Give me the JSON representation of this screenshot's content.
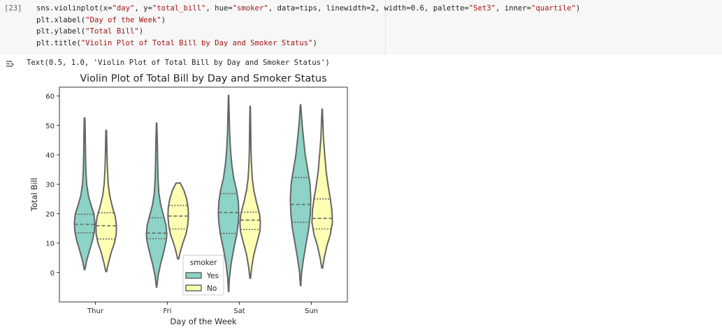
{
  "cell": {
    "exec_count": "[23]",
    "lines": [
      [
        {
          "t": "sns.violinplot(x="
        },
        {
          "t": "\"day\"",
          "s": 1
        },
        {
          "t": ", y="
        },
        {
          "t": "\"total_bill\"",
          "s": 1
        },
        {
          "t": ", hue="
        },
        {
          "t": "\"smoker\"",
          "s": 1
        },
        {
          "t": ", data=tips, linewidth=2, width=0.6, palette="
        },
        {
          "t": "\"Set3\"",
          "s": 1
        },
        {
          "t": ", inner="
        },
        {
          "t": "\"quartile\"",
          "s": 1
        },
        {
          "t": ")"
        }
      ],
      [
        {
          "t": "plt.xlabel("
        },
        {
          "t": "\"Day of the Week\"",
          "s": 1
        },
        {
          "t": ")"
        }
      ],
      [
        {
          "t": "plt.ylabel("
        },
        {
          "t": "\"Total Bill\"",
          "s": 1
        },
        {
          "t": ")"
        }
      ],
      [
        {
          "t": "plt.title("
        },
        {
          "t": "\"Violin Plot of Total Bill by Day and Smoker Status\"",
          "s": 1
        },
        {
          "t": ")"
        }
      ]
    ]
  },
  "output": {
    "icon": "output-toggle-icon",
    "text": "Text(0.5, 1.0, 'Violin Plot of Total Bill by Day and Smoker Status')"
  },
  "chart_data": {
    "type": "violin",
    "title": "Violin Plot of Total Bill by Day and Smoker Status",
    "xlabel": "Day of the Week",
    "ylabel": "Total Bill",
    "categories": [
      "Thur",
      "Fri",
      "Sat",
      "Sun"
    ],
    "yticks": [
      0,
      10,
      20,
      30,
      40,
      50,
      60
    ],
    "ylim": [
      -10,
      63
    ],
    "legend": {
      "title": "smoker",
      "placement": "lower-center"
    },
    "colors": {
      "Yes": "#8dd3c7",
      "No": "#ffffb3",
      "line": "#666666"
    },
    "series": [
      {
        "name": "Yes",
        "violins": [
          {
            "min": 1,
            "max": 52.5,
            "q1": 13.5,
            "median": 16.4,
            "q3": 19.8,
            "profile": [
              [
                1,
                0.04
              ],
              [
                4,
                0.2
              ],
              [
                8,
                0.52
              ],
              [
                11,
                0.78
              ],
              [
                14,
                0.95
              ],
              [
                17,
                1.0
              ],
              [
                20,
                0.9
              ],
              [
                23,
                0.62
              ],
              [
                26,
                0.38
              ],
              [
                30,
                0.2
              ],
              [
                35,
                0.12
              ],
              [
                40,
                0.09
              ],
              [
                45,
                0.07
              ],
              [
                50,
                0.05
              ],
              [
                52.5,
                0.03
              ]
            ]
          },
          {
            "min": -5,
            "max": 50.8,
            "q1": 11.5,
            "median": 13.4,
            "q3": 18.6,
            "profile": [
              [
                -5,
                0.02
              ],
              [
                -1,
                0.15
              ],
              [
                3,
                0.4
              ],
              [
                7,
                0.7
              ],
              [
                11,
                0.95
              ],
              [
                13,
                1.0
              ],
              [
                16,
                0.92
              ],
              [
                19,
                0.7
              ],
              [
                23,
                0.4
              ],
              [
                27,
                0.22
              ],
              [
                32,
                0.14
              ],
              [
                38,
                0.1
              ],
              [
                44,
                0.07
              ],
              [
                50.8,
                0.02
              ]
            ]
          },
          {
            "min": -6.5,
            "max": 60.2,
            "q1": 13.3,
            "median": 20.4,
            "q3": 26.8,
            "profile": [
              [
                -6.5,
                0.02
              ],
              [
                -2,
                0.08
              ],
              [
                3,
                0.25
              ],
              [
                8,
                0.5
              ],
              [
                13,
                0.8
              ],
              [
                17,
                0.95
              ],
              [
                20,
                1.0
              ],
              [
                24,
                0.95
              ],
              [
                28,
                0.78
              ],
              [
                32,
                0.5
              ],
              [
                37,
                0.3
              ],
              [
                42,
                0.18
              ],
              [
                48,
                0.1
              ],
              [
                54,
                0.06
              ],
              [
                60.2,
                0.02
              ]
            ]
          },
          {
            "min": -4.5,
            "max": 57,
            "q1": 17.1,
            "median": 23.1,
            "q3": 32.3,
            "profile": [
              [
                -4.5,
                0.02
              ],
              [
                0,
                0.1
              ],
              [
                5,
                0.3
              ],
              [
                10,
                0.55
              ],
              [
                15,
                0.8
              ],
              [
                20,
                0.95
              ],
              [
                25,
                1.0
              ],
              [
                30,
                0.92
              ],
              [
                35,
                0.7
              ],
              [
                40,
                0.45
              ],
              [
                45,
                0.3
              ],
              [
                50,
                0.16
              ],
              [
                57,
                0.02
              ]
            ]
          }
        ]
      },
      {
        "name": "No",
        "violins": [
          {
            "min": 0.3,
            "max": 48.3,
            "q1": 11.4,
            "median": 15.9,
            "q3": 20.3,
            "profile": [
              [
                0.3,
                0.04
              ],
              [
                3,
                0.2
              ],
              [
                7,
                0.5
              ],
              [
                10,
                0.8
              ],
              [
                13,
                0.98
              ],
              [
                16,
                1.0
              ],
              [
                19,
                0.88
              ],
              [
                22,
                0.62
              ],
              [
                26,
                0.35
              ],
              [
                30,
                0.2
              ],
              [
                35,
                0.12
              ],
              [
                40,
                0.08
              ],
              [
                45,
                0.05
              ],
              [
                48.3,
                0.03
              ]
            ]
          },
          {
            "min": 4.6,
            "max": 30.4,
            "q1": 14.8,
            "median": 19.2,
            "q3": 22.8,
            "profile": [
              [
                4.6,
                0.05
              ],
              [
                7,
                0.2
              ],
              [
                10,
                0.45
              ],
              [
                13,
                0.75
              ],
              [
                16,
                0.92
              ],
              [
                19,
                1.0
              ],
              [
                22,
                0.97
              ],
              [
                25,
                0.82
              ],
              [
                28,
                0.55
              ],
              [
                30.4,
                0.2
              ]
            ]
          },
          {
            "min": -2,
            "max": 56.5,
            "q1": 14.6,
            "median": 17.8,
            "q3": 20.5,
            "profile": [
              [
                -2,
                0.03
              ],
              [
                2,
                0.15
              ],
              [
                6,
                0.35
              ],
              [
                10,
                0.65
              ],
              [
                14,
                0.95
              ],
              [
                17,
                1.0
              ],
              [
                20,
                0.9
              ],
              [
                24,
                0.6
              ],
              [
                28,
                0.35
              ],
              [
                32,
                0.2
              ],
              [
                37,
                0.12
              ],
              [
                42,
                0.08
              ],
              [
                48,
                0.06
              ],
              [
                56.5,
                0.02
              ]
            ]
          },
          {
            "min": 1.5,
            "max": 55.5,
            "q1": 14.8,
            "median": 18.4,
            "q3": 25.0,
            "profile": [
              [
                1.5,
                0.04
              ],
              [
                5,
                0.2
              ],
              [
                9,
                0.45
              ],
              [
                13,
                0.8
              ],
              [
                17,
                1.0
              ],
              [
                21,
                0.95
              ],
              [
                25,
                0.8
              ],
              [
                29,
                0.6
              ],
              [
                34,
                0.4
              ],
              [
                40,
                0.25
              ],
              [
                46,
                0.12
              ],
              [
                52,
                0.06
              ],
              [
                55.5,
                0.02
              ]
            ]
          }
        ]
      }
    ]
  }
}
